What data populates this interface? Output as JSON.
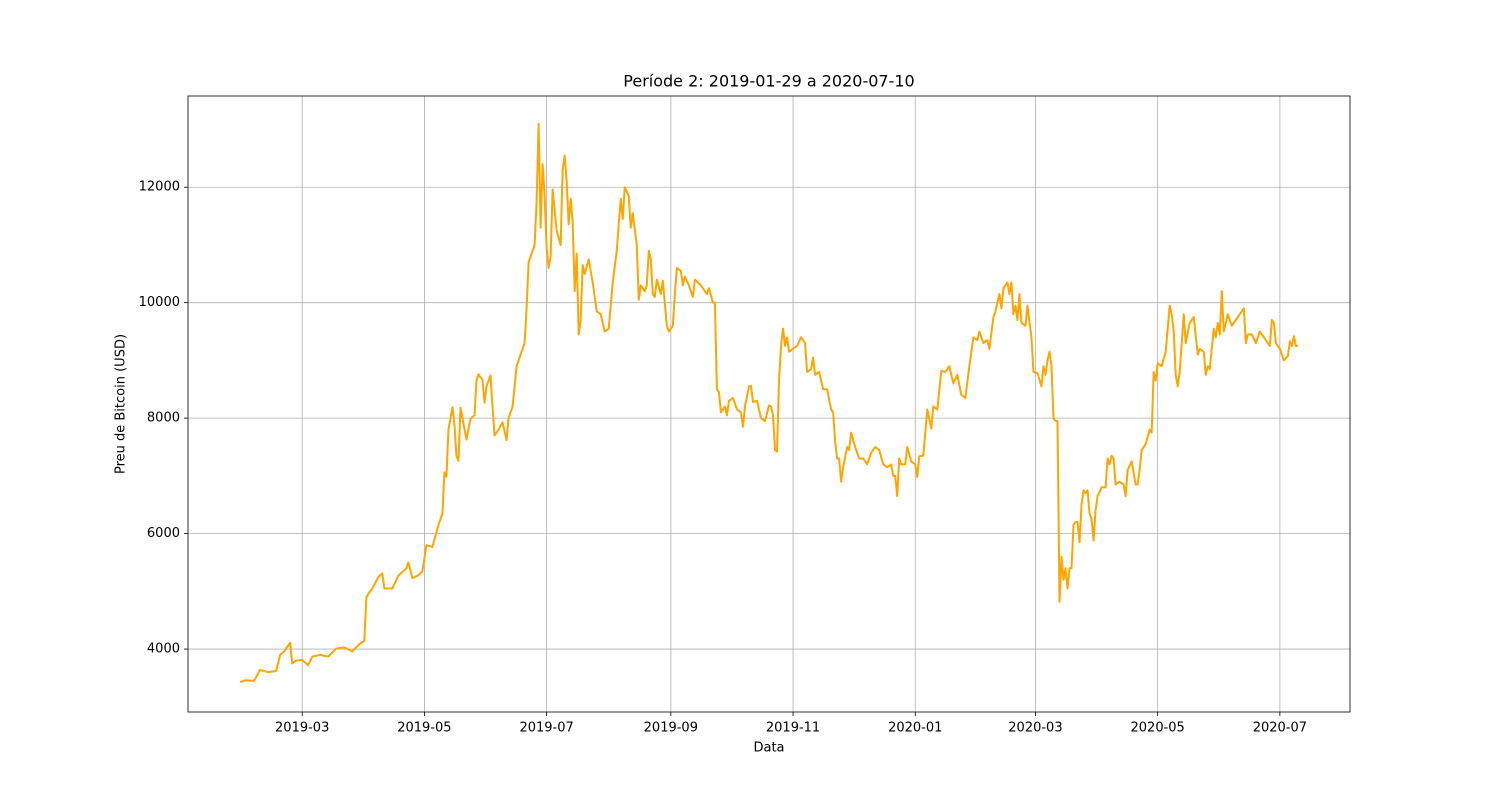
{
  "chart_data": {
    "type": "line",
    "title": "Període 2: 2019-01-29 a 2020-07-10",
    "xlabel": "Data",
    "ylabel": "Preu de Bitcoin (USD)",
    "grid": true,
    "xlim": [
      "2019-01-03",
      "2020-08-05"
    ],
    "ylim": [
      2910,
      13580
    ],
    "xticks": [
      {
        "value": "2019-03-01",
        "label": "2019-03"
      },
      {
        "value": "2019-05-01",
        "label": "2019-05"
      },
      {
        "value": "2019-07-01",
        "label": "2019-07"
      },
      {
        "value": "2019-09-01",
        "label": "2019-09"
      },
      {
        "value": "2019-11-01",
        "label": "2019-11"
      },
      {
        "value": "2020-01-01",
        "label": "2020-01"
      },
      {
        "value": "2020-03-01",
        "label": "2020-03"
      },
      {
        "value": "2020-05-01",
        "label": "2020-05"
      },
      {
        "value": "2020-07-01",
        "label": "2020-07"
      }
    ],
    "yticks": [
      4000,
      6000,
      8000,
      10000,
      12000
    ],
    "x": [
      "2019-01-29",
      "2019-02-01",
      "2019-02-05",
      "2019-02-08",
      "2019-02-12",
      "2019-02-16",
      "2019-02-18",
      "2019-02-20",
      "2019-02-23",
      "2019-02-24",
      "2019-02-26",
      "2019-03-01",
      "2019-03-04",
      "2019-03-06",
      "2019-03-10",
      "2019-03-14",
      "2019-03-18",
      "2019-03-22",
      "2019-03-26",
      "2019-03-30",
      "2019-04-01",
      "2019-04-02",
      "2019-04-03",
      "2019-04-05",
      "2019-04-08",
      "2019-04-10",
      "2019-04-11",
      "2019-04-15",
      "2019-04-18",
      "2019-04-22",
      "2019-04-23",
      "2019-04-25",
      "2019-04-28",
      "2019-04-30",
      "2019-05-02",
      "2019-05-05",
      "2019-05-08",
      "2019-05-10",
      "2019-05-11",
      "2019-05-12",
      "2019-05-13",
      "2019-05-15",
      "2019-05-16",
      "2019-05-17",
      "2019-05-18",
      "2019-05-19",
      "2019-05-22",
      "2019-05-24",
      "2019-05-26",
      "2019-05-27",
      "2019-05-28",
      "2019-05-30",
      "2019-05-31",
      "2019-06-01",
      "2019-06-03",
      "2019-06-04",
      "2019-06-05",
      "2019-06-07",
      "2019-06-09",
      "2019-06-11",
      "2019-06-12",
      "2019-06-14",
      "2019-06-16",
      "2019-06-18",
      "2019-06-20",
      "2019-06-21",
      "2019-06-22",
      "2019-06-25",
      "2019-06-26",
      "2019-06-27",
      "2019-06-28",
      "2019-06-29",
      "2019-06-30",
      "2019-07-01",
      "2019-07-02",
      "2019-07-03",
      "2019-07-04",
      "2019-07-06",
      "2019-07-08",
      "2019-07-09",
      "2019-07-10",
      "2019-07-11",
      "2019-07-12",
      "2019-07-13",
      "2019-07-14",
      "2019-07-15",
      "2019-07-16",
      "2019-07-17",
      "2019-07-18",
      "2019-07-19",
      "2019-07-20",
      "2019-07-22",
      "2019-07-24",
      "2019-07-26",
      "2019-07-28",
      "2019-07-30",
      "2019-08-01",
      "2019-08-03",
      "2019-08-05",
      "2019-08-07",
      "2019-08-08",
      "2019-08-09",
      "2019-08-11",
      "2019-08-12",
      "2019-08-13",
      "2019-08-15",
      "2019-08-16",
      "2019-08-17",
      "2019-08-19",
      "2019-08-20",
      "2019-08-21",
      "2019-08-22",
      "2019-08-23",
      "2019-08-24",
      "2019-08-25",
      "2019-08-27",
      "2019-08-28",
      "2019-08-30",
      "2019-08-31",
      "2019-09-02",
      "2019-09-03",
      "2019-09-04",
      "2019-09-06",
      "2019-09-07",
      "2019-09-08",
      "2019-09-10",
      "2019-09-12",
      "2019-09-13",
      "2019-09-16",
      "2019-09-19",
      "2019-09-20",
      "2019-09-22",
      "2019-09-23",
      "2019-09-24",
      "2019-09-25",
      "2019-09-26",
      "2019-09-28",
      "2019-09-29",
      "2019-09-30",
      "2019-10-02",
      "2019-10-04",
      "2019-10-06",
      "2019-10-07",
      "2019-10-08",
      "2019-10-10",
      "2019-10-11",
      "2019-10-12",
      "2019-10-14",
      "2019-10-16",
      "2019-10-18",
      "2019-10-20",
      "2019-10-21",
      "2019-10-22",
      "2019-10-23",
      "2019-10-24",
      "2019-10-25",
      "2019-10-26",
      "2019-10-27",
      "2019-10-28",
      "2019-10-29",
      "2019-10-30",
      "2019-11-01",
      "2019-11-03",
      "2019-11-05",
      "2019-11-07",
      "2019-11-08",
      "2019-11-10",
      "2019-11-11",
      "2019-11-12",
      "2019-11-14",
      "2019-11-16",
      "2019-11-18",
      "2019-11-20",
      "2019-11-21",
      "2019-11-22",
      "2019-11-23",
      "2019-11-24",
      "2019-11-25",
      "2019-11-26",
      "2019-11-28",
      "2019-11-29",
      "2019-11-30",
      "2019-12-02",
      "2019-12-04",
      "2019-12-06",
      "2019-12-08",
      "2019-12-10",
      "2019-12-12",
      "2019-12-14",
      "2019-12-16",
      "2019-12-18",
      "2019-12-20",
      "2019-12-21",
      "2019-12-22",
      "2019-12-23",
      "2019-12-24",
      "2019-12-25",
      "2019-12-27",
      "2019-12-28",
      "2019-12-30",
      "2020-01-01",
      "2020-01-02",
      "2020-01-03",
      "2020-01-05",
      "2020-01-07",
      "2020-01-09",
      "2020-01-10",
      "2020-01-12",
      "2020-01-14",
      "2020-01-16",
      "2020-01-18",
      "2020-01-20",
      "2020-01-22",
      "2020-01-24",
      "2020-01-26",
      "2020-01-28",
      "2020-01-30",
      "2020-02-01",
      "2020-02-02",
      "2020-02-04",
      "2020-02-06",
      "2020-02-07",
      "2020-02-09",
      "2020-02-10",
      "2020-02-12",
      "2020-02-13",
      "2020-02-14",
      "2020-02-16",
      "2020-02-17",
      "2020-02-18",
      "2020-02-19",
      "2020-02-20",
      "2020-02-21",
      "2020-02-22",
      "2020-02-23",
      "2020-02-25",
      "2020-02-26",
      "2020-02-28",
      "2020-02-29",
      "2020-03-02",
      "2020-03-04",
      "2020-03-05",
      "2020-03-06",
      "2020-03-07",
      "2020-03-08",
      "2020-03-09",
      "2020-03-10",
      "2020-03-11",
      "2020-03-12",
      "2020-03-13",
      "2020-03-14",
      "2020-03-15",
      "2020-03-16",
      "2020-03-17",
      "2020-03-18",
      "2020-03-19",
      "2020-03-20",
      "2020-03-21",
      "2020-03-22",
      "2020-03-23",
      "2020-03-24",
      "2020-03-25",
      "2020-03-26",
      "2020-03-27",
      "2020-03-28",
      "2020-03-29",
      "2020-03-30",
      "2020-03-31",
      "2020-04-01",
      "2020-04-03",
      "2020-04-05",
      "2020-04-06",
      "2020-04-07",
      "2020-04-08",
      "2020-04-09",
      "2020-04-10",
      "2020-04-12",
      "2020-04-14",
      "2020-04-15",
      "2020-04-16",
      "2020-04-18",
      "2020-04-20",
      "2020-04-21",
      "2020-04-22",
      "2020-04-23",
      "2020-04-25",
      "2020-04-27",
      "2020-04-28",
      "2020-04-29",
      "2020-04-30",
      "2020-05-01",
      "2020-05-03",
      "2020-05-05",
      "2020-05-07",
      "2020-05-08",
      "2020-05-09",
      "2020-05-10",
      "2020-05-11",
      "2020-05-12",
      "2020-05-13",
      "2020-05-14",
      "2020-05-15",
      "2020-05-17",
      "2020-05-19",
      "2020-05-21",
      "2020-05-22",
      "2020-05-24",
      "2020-05-25",
      "2020-05-26",
      "2020-05-27",
      "2020-05-29",
      "2020-05-30",
      "2020-05-31",
      "2020-06-01",
      "2020-06-02",
      "2020-06-03",
      "2020-06-04",
      "2020-06-05",
      "2020-06-07",
      "2020-06-09",
      "2020-06-11",
      "2020-06-13",
      "2020-06-14",
      "2020-06-15",
      "2020-06-17",
      "2020-06-19",
      "2020-06-21",
      "2020-06-23",
      "2020-06-25",
      "2020-06-26",
      "2020-06-27",
      "2020-06-28",
      "2020-06-29",
      "2020-07-01",
      "2020-07-03",
      "2020-07-05",
      "2020-07-06",
      "2020-07-07",
      "2020-07-08",
      "2020-07-09",
      "2020-07-10"
    ],
    "series": [
      {
        "name": "Preu de Bitcoin (USD)",
        "color": "#ffa500",
        "values": [
          3430,
          3460,
          3450,
          3640,
          3600,
          3620,
          3900,
          3960,
          4110,
          3750,
          3800,
          3810,
          3720,
          3870,
          3900,
          3870,
          4010,
          4030,
          3960,
          4100,
          4140,
          4890,
          4960,
          5050,
          5250,
          5310,
          5050,
          5050,
          5270,
          5400,
          5500,
          5230,
          5280,
          5350,
          5800,
          5770,
          6150,
          6350,
          7060,
          6990,
          7800,
          8190,
          7880,
          7340,
          7260,
          8180,
          7630,
          7990,
          8050,
          8650,
          8760,
          8660,
          8270,
          8550,
          8740,
          8200,
          7700,
          7800,
          7930,
          7620,
          8000,
          8200,
          8900,
          9100,
          9300,
          9900,
          10700,
          11000,
          11750,
          13100,
          11300,
          12400,
          11870,
          10950,
          10600,
          10800,
          11960,
          11250,
          11000,
          12300,
          12550,
          12100,
          11360,
          11800,
          11400,
          10200,
          10850,
          9450,
          9700,
          10650,
          10500,
          10750,
          10350,
          9850,
          9800,
          9500,
          9550,
          10350,
          10900,
          11800,
          11450,
          12000,
          11850,
          11300,
          11550,
          11000,
          10050,
          10300,
          10200,
          10300,
          10900,
          10750,
          10150,
          10100,
          10400,
          10150,
          10380,
          9600,
          9500,
          9600,
          10150,
          10600,
          10550,
          10300,
          10450,
          10300,
          10100,
          10400,
          10300,
          10150,
          10250,
          10000,
          10000,
          8500,
          8450,
          8100,
          8200,
          8050,
          8300,
          8350,
          8150,
          8100,
          7850,
          8200,
          8550,
          8560,
          8280,
          8300,
          8000,
          7950,
          8220,
          8200,
          8050,
          7450,
          7420,
          8650,
          9250,
          9550,
          9250,
          9400,
          9150,
          9200,
          9250,
          9400,
          9300,
          8800,
          8850,
          9050,
          8750,
          8800,
          8500,
          8500,
          8150,
          8100,
          7600,
          7300,
          7300,
          6900,
          7150,
          7500,
          7450,
          7750,
          7500,
          7300,
          7300,
          7200,
          7400,
          7500,
          7450,
          7200,
          7150,
          7200,
          7000,
          7000,
          6650,
          7300,
          7200,
          7200,
          7500,
          7250,
          7200,
          6980,
          7340,
          7350,
          8150,
          7820,
          8200,
          8150,
          8820,
          8800,
          8900,
          8600,
          8750,
          8400,
          8350,
          8900,
          9400,
          9350,
          9500,
          9300,
          9350,
          9200,
          9750,
          9850,
          10150,
          9900,
          10250,
          10350,
          10150,
          10350,
          9800,
          9950,
          9700,
          10150,
          9650,
          9600,
          9950,
          9400,
          8800,
          8780,
          8550,
          8900,
          8750,
          9000,
          9150,
          8900,
          8000,
          7950,
          7950,
          4820,
          5600,
          5200,
          5400,
          5050,
          5400,
          5400,
          6150,
          6200,
          6200,
          5850,
          6500,
          6750,
          6700,
          6750,
          6350,
          6250,
          5880,
          6400,
          6650,
          6800,
          6800,
          7300,
          7200,
          7350,
          7300,
          6850,
          6900,
          6850,
          6650,
          7100,
          7250,
          6850,
          6850,
          7100,
          7450,
          7550,
          7800,
          7750,
          8800,
          8650,
          8950,
          8900,
          9150,
          9950,
          9800,
          9500,
          8750,
          8550,
          8800,
          9300,
          9800,
          9300,
          9650,
          9750,
          9100,
          9200,
          9150,
          8750,
          8900,
          8850,
          9550,
          9400,
          9650,
          9450,
          10200,
          9500,
          9650,
          9800,
          9600,
          9700,
          9800,
          9900,
          9300,
          9450,
          9450,
          9300,
          9500,
          9400,
          9300,
          9250,
          9700,
          9650,
          9300,
          9200,
          9000,
          9080,
          9330,
          9250,
          9420,
          9250,
          9250
        ]
      }
    ]
  }
}
